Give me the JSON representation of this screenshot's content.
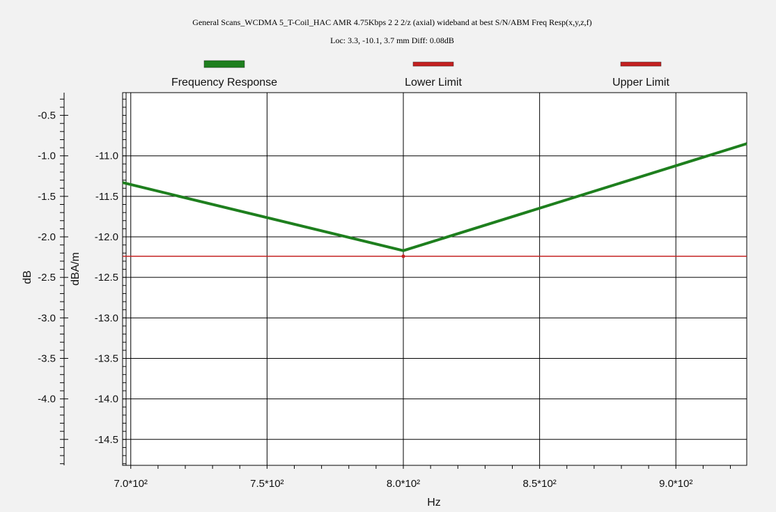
{
  "chart_data": {
    "type": "line",
    "title": "General Scans_WCDMA 5_T-Coil_HAC AMR 4.75Kbps 2 2 2/z (axial) wideband at best S/N/ABM Freq Resp(x,y,z,f)",
    "subtitle": "Loc: 3.3, -10.1, 3.7 mm Diff: 0.08dB",
    "xlabel": "Hz",
    "ylabel_outer": "dB",
    "ylabel_inner": "dBA/m",
    "xlim": [
      697,
      926
    ],
    "ylim_inner": [
      -14.82,
      -10.22
    ],
    "ylim_outer": [
      -4.82,
      -0.22
    ],
    "x_ticks": [
      {
        "value": 700,
        "label": "7.0*10²"
      },
      {
        "value": 750,
        "label": "7.5*10²"
      },
      {
        "value": 800,
        "label": "8.0*10²"
      },
      {
        "value": 850,
        "label": "8.5*10²"
      },
      {
        "value": 900,
        "label": "9.0*10²"
      }
    ],
    "y_ticks_inner": [
      {
        "value": -11.0,
        "label": "-11.0"
      },
      {
        "value": -11.5,
        "label": "-11.5"
      },
      {
        "value": -12.0,
        "label": "-12.0"
      },
      {
        "value": -12.5,
        "label": "-12.5"
      },
      {
        "value": -13.0,
        "label": "-13.0"
      },
      {
        "value": -13.5,
        "label": "-13.5"
      },
      {
        "value": -14.0,
        "label": "-14.0"
      },
      {
        "value": -14.5,
        "label": "-14.5"
      }
    ],
    "y_ticks_outer": [
      {
        "value": -0.5,
        "label": "-0.5"
      },
      {
        "value": -1.0,
        "label": "-1.0"
      },
      {
        "value": -1.5,
        "label": "-1.5"
      },
      {
        "value": -2.0,
        "label": "-2.0"
      },
      {
        "value": -2.5,
        "label": "-2.5"
      },
      {
        "value": -3.0,
        "label": "-3.0"
      },
      {
        "value": -3.5,
        "label": "-3.5"
      },
      {
        "value": -4.0,
        "label": "-4.0"
      }
    ],
    "grid": true,
    "legend_position": "top",
    "series": [
      {
        "name": "Frequency Response",
        "color": "#1e7f1e",
        "x": [
          697,
          800,
          926
        ],
        "y": [
          -11.33,
          -12.17,
          -10.85
        ]
      },
      {
        "name": "Lower Limit",
        "color": "#c42020",
        "x": [
          697,
          926
        ],
        "y": [
          -12.24,
          -12.24
        ]
      },
      {
        "name": "Upper Limit",
        "color": "#c42020",
        "x": [],
        "y": []
      }
    ]
  }
}
